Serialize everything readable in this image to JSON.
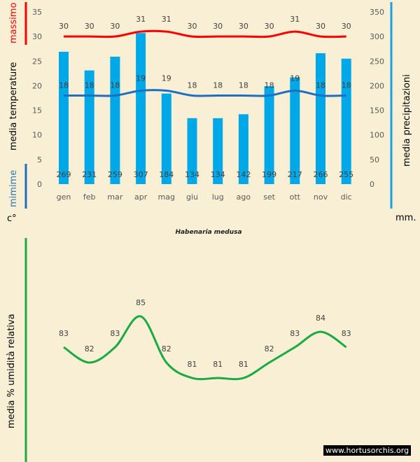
{
  "chart_data": [
    {
      "type": "bar+line",
      "title": "Habenaria medusa",
      "categories": [
        "gen",
        "feb",
        "mar",
        "apr",
        "mag",
        "giu",
        "lug",
        "ago",
        "set",
        "ott",
        "nov",
        "dic"
      ],
      "left_axis": {
        "label": "media  temperature",
        "unit": "c°",
        "range": [
          0,
          35
        ],
        "ticks": [
          0,
          5,
          10,
          15,
          20,
          25,
          30,
          35
        ]
      },
      "right_axis": {
        "label": "media  precipitazioni",
        "unit": "mm.",
        "range": [
          0,
          350
        ],
        "ticks": [
          0,
          50,
          100,
          150,
          200,
          250,
          300,
          350
        ]
      },
      "series": [
        {
          "name": "massimo",
          "type": "line",
          "axis": "left",
          "color": "#ff0000",
          "values": [
            30,
            30,
            30,
            31,
            31,
            30,
            30,
            30,
            30,
            31,
            30,
            30
          ]
        },
        {
          "name": "mimime",
          "type": "line",
          "axis": "left",
          "color": "#1f6fc0",
          "values": [
            18,
            18,
            18,
            19,
            19,
            18,
            18,
            18,
            18,
            19,
            18,
            18
          ]
        },
        {
          "type": "bar",
          "axis": "right",
          "color": "#00a8e8",
          "values": [
            269,
            231,
            259,
            307,
            184,
            134,
            134,
            142,
            199,
            217,
            266,
            255
          ]
        }
      ]
    },
    {
      "type": "line",
      "ylabel": "media % umidità relativa",
      "categories": [
        "gen",
        "feb",
        "mar",
        "apr",
        "mag",
        "giu",
        "lug",
        "ago",
        "set",
        "ott",
        "nov",
        "dic"
      ],
      "series": [
        {
          "type": "line",
          "color": "#1aaa44",
          "values": [
            83,
            82,
            83,
            85,
            82,
            81,
            81,
            81,
            82,
            83,
            84,
            83
          ]
        }
      ]
    }
  ],
  "watermark": "www.hortusorchis.org"
}
